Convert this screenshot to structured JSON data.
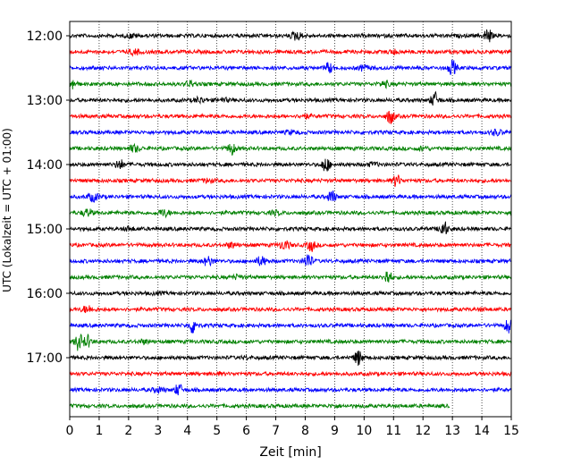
{
  "chart_data": {
    "type": "line",
    "xlabel": "Zeit  [min]",
    "ylabel": "UTC (Lokalzeit = UTC + 01:00)",
    "xlim": [
      0,
      15
    ],
    "x_ticks": [
      0,
      1,
      2,
      3,
      4,
      5,
      6,
      7,
      8,
      9,
      10,
      11,
      12,
      13,
      14,
      15
    ],
    "x_tick_labels": [
      "0",
      "1",
      "2",
      "3",
      "4",
      "5",
      "6",
      "7",
      "8",
      "9",
      "10",
      "11",
      "12",
      "13",
      "14",
      "15"
    ],
    "y_tick_labels": [
      "12:00",
      "13:00",
      "14:00",
      "15:00",
      "16:00",
      "17:00"
    ],
    "y_tick_trace_index": [
      0,
      4,
      8,
      12,
      16,
      20
    ],
    "grid": "vertical dotted",
    "trace_minutes": 15,
    "colors": [
      "#000000",
      "#ff0000",
      "#0000ff",
      "#008000"
    ],
    "traces": [
      {
        "start": "12:00",
        "color": "#000000",
        "end_min": 15,
        "events": [
          [
            7.7,
            0.5
          ],
          [
            14.2,
            0.9
          ],
          [
            2.1,
            0.2
          ]
        ]
      },
      {
        "start": "12:15",
        "color": "#ff0000",
        "end_min": 15,
        "events": [
          [
            2.2,
            0.3
          ],
          [
            11.0,
            0.2
          ]
        ]
      },
      {
        "start": "12:30",
        "color": "#0000ff",
        "end_min": 15,
        "events": [
          [
            8.8,
            0.6
          ],
          [
            13.0,
            0.9
          ],
          [
            10.0,
            0.3
          ]
        ]
      },
      {
        "start": "12:45",
        "color": "#008000",
        "end_min": 15,
        "events": [
          [
            0.1,
            0.6
          ],
          [
            4.1,
            0.3
          ],
          [
            10.7,
            0.3
          ]
        ]
      },
      {
        "start": "13:00",
        "color": "#000000",
        "end_min": 15,
        "events": [
          [
            4.4,
            0.3
          ],
          [
            12.4,
            0.9
          ],
          [
            5.2,
            0.2
          ]
        ]
      },
      {
        "start": "13:15",
        "color": "#ff0000",
        "end_min": 15,
        "events": [
          [
            10.9,
            0.9
          ],
          [
            8.0,
            0.2
          ]
        ]
      },
      {
        "start": "13:30",
        "color": "#0000ff",
        "end_min": 15,
        "events": [
          [
            14.5,
            0.3
          ],
          [
            7.5,
            0.2
          ]
        ]
      },
      {
        "start": "13:45",
        "color": "#008000",
        "end_min": 15,
        "events": [
          [
            2.2,
            0.4
          ],
          [
            5.5,
            0.7
          ],
          [
            12.0,
            0.2
          ]
        ]
      },
      {
        "start": "14:00",
        "color": "#000000",
        "end_min": 15,
        "events": [
          [
            1.7,
            0.6
          ],
          [
            8.7,
            0.9
          ],
          [
            10.3,
            0.2
          ]
        ]
      },
      {
        "start": "14:15",
        "color": "#ff0000",
        "end_min": 15,
        "events": [
          [
            11.1,
            0.7
          ],
          [
            4.7,
            0.2
          ]
        ]
      },
      {
        "start": "14:30",
        "color": "#0000ff",
        "end_min": 15,
        "events": [
          [
            0.8,
            0.5
          ],
          [
            8.9,
            0.8
          ]
        ]
      },
      {
        "start": "14:45",
        "color": "#008000",
        "end_min": 15,
        "events": [
          [
            0.6,
            0.4
          ],
          [
            3.2,
            0.4
          ],
          [
            7.0,
            0.2
          ]
        ]
      },
      {
        "start": "15:00",
        "color": "#000000",
        "end_min": 15,
        "events": [
          [
            12.7,
            1.0
          ],
          [
            2.0,
            0.2
          ]
        ]
      },
      {
        "start": "15:15",
        "color": "#ff0000",
        "end_min": 15,
        "events": [
          [
            7.3,
            0.5
          ],
          [
            8.2,
            0.7
          ],
          [
            5.5,
            0.3
          ]
        ]
      },
      {
        "start": "15:30",
        "color": "#0000ff",
        "end_min": 15,
        "events": [
          [
            4.7,
            0.5
          ],
          [
            6.5,
            0.5
          ],
          [
            8.1,
            1.0
          ]
        ]
      },
      {
        "start": "15:45",
        "color": "#008000",
        "end_min": 15,
        "events": [
          [
            10.8,
            0.9
          ],
          [
            5.7,
            0.2
          ]
        ]
      },
      {
        "start": "16:00",
        "color": "#000000",
        "end_min": 15,
        "events": [
          [
            3.0,
            0.1
          ]
        ]
      },
      {
        "start": "16:15",
        "color": "#ff0000",
        "end_min": 15,
        "events": [
          [
            0.6,
            0.4
          ],
          [
            14.0,
            0.1
          ]
        ]
      },
      {
        "start": "16:30",
        "color": "#0000ff",
        "end_min": 15,
        "events": [
          [
            4.2,
            1.0
          ],
          [
            14.9,
            0.8
          ]
        ]
      },
      {
        "start": "16:45",
        "color": "#008000",
        "end_min": 15,
        "events": [
          [
            0.3,
            1.0
          ],
          [
            0.6,
            0.7
          ],
          [
            2.5,
            0.2
          ]
        ]
      },
      {
        "start": "17:00",
        "color": "#000000",
        "end_min": 15,
        "events": [
          [
            9.8,
            0.9
          ],
          [
            6.0,
            0.1
          ]
        ]
      },
      {
        "start": "17:15",
        "color": "#ff0000",
        "end_min": 15,
        "events": [
          [
            5.0,
            0.1
          ]
        ]
      },
      {
        "start": "17:30",
        "color": "#0000ff",
        "end_min": 15,
        "events": [
          [
            3.0,
            0.3
          ],
          [
            3.7,
            0.7
          ]
        ]
      },
      {
        "start": "17:45",
        "color": "#008000",
        "end_min": 12.9,
        "events": [
          [
            9.0,
            0.1
          ]
        ]
      }
    ]
  }
}
